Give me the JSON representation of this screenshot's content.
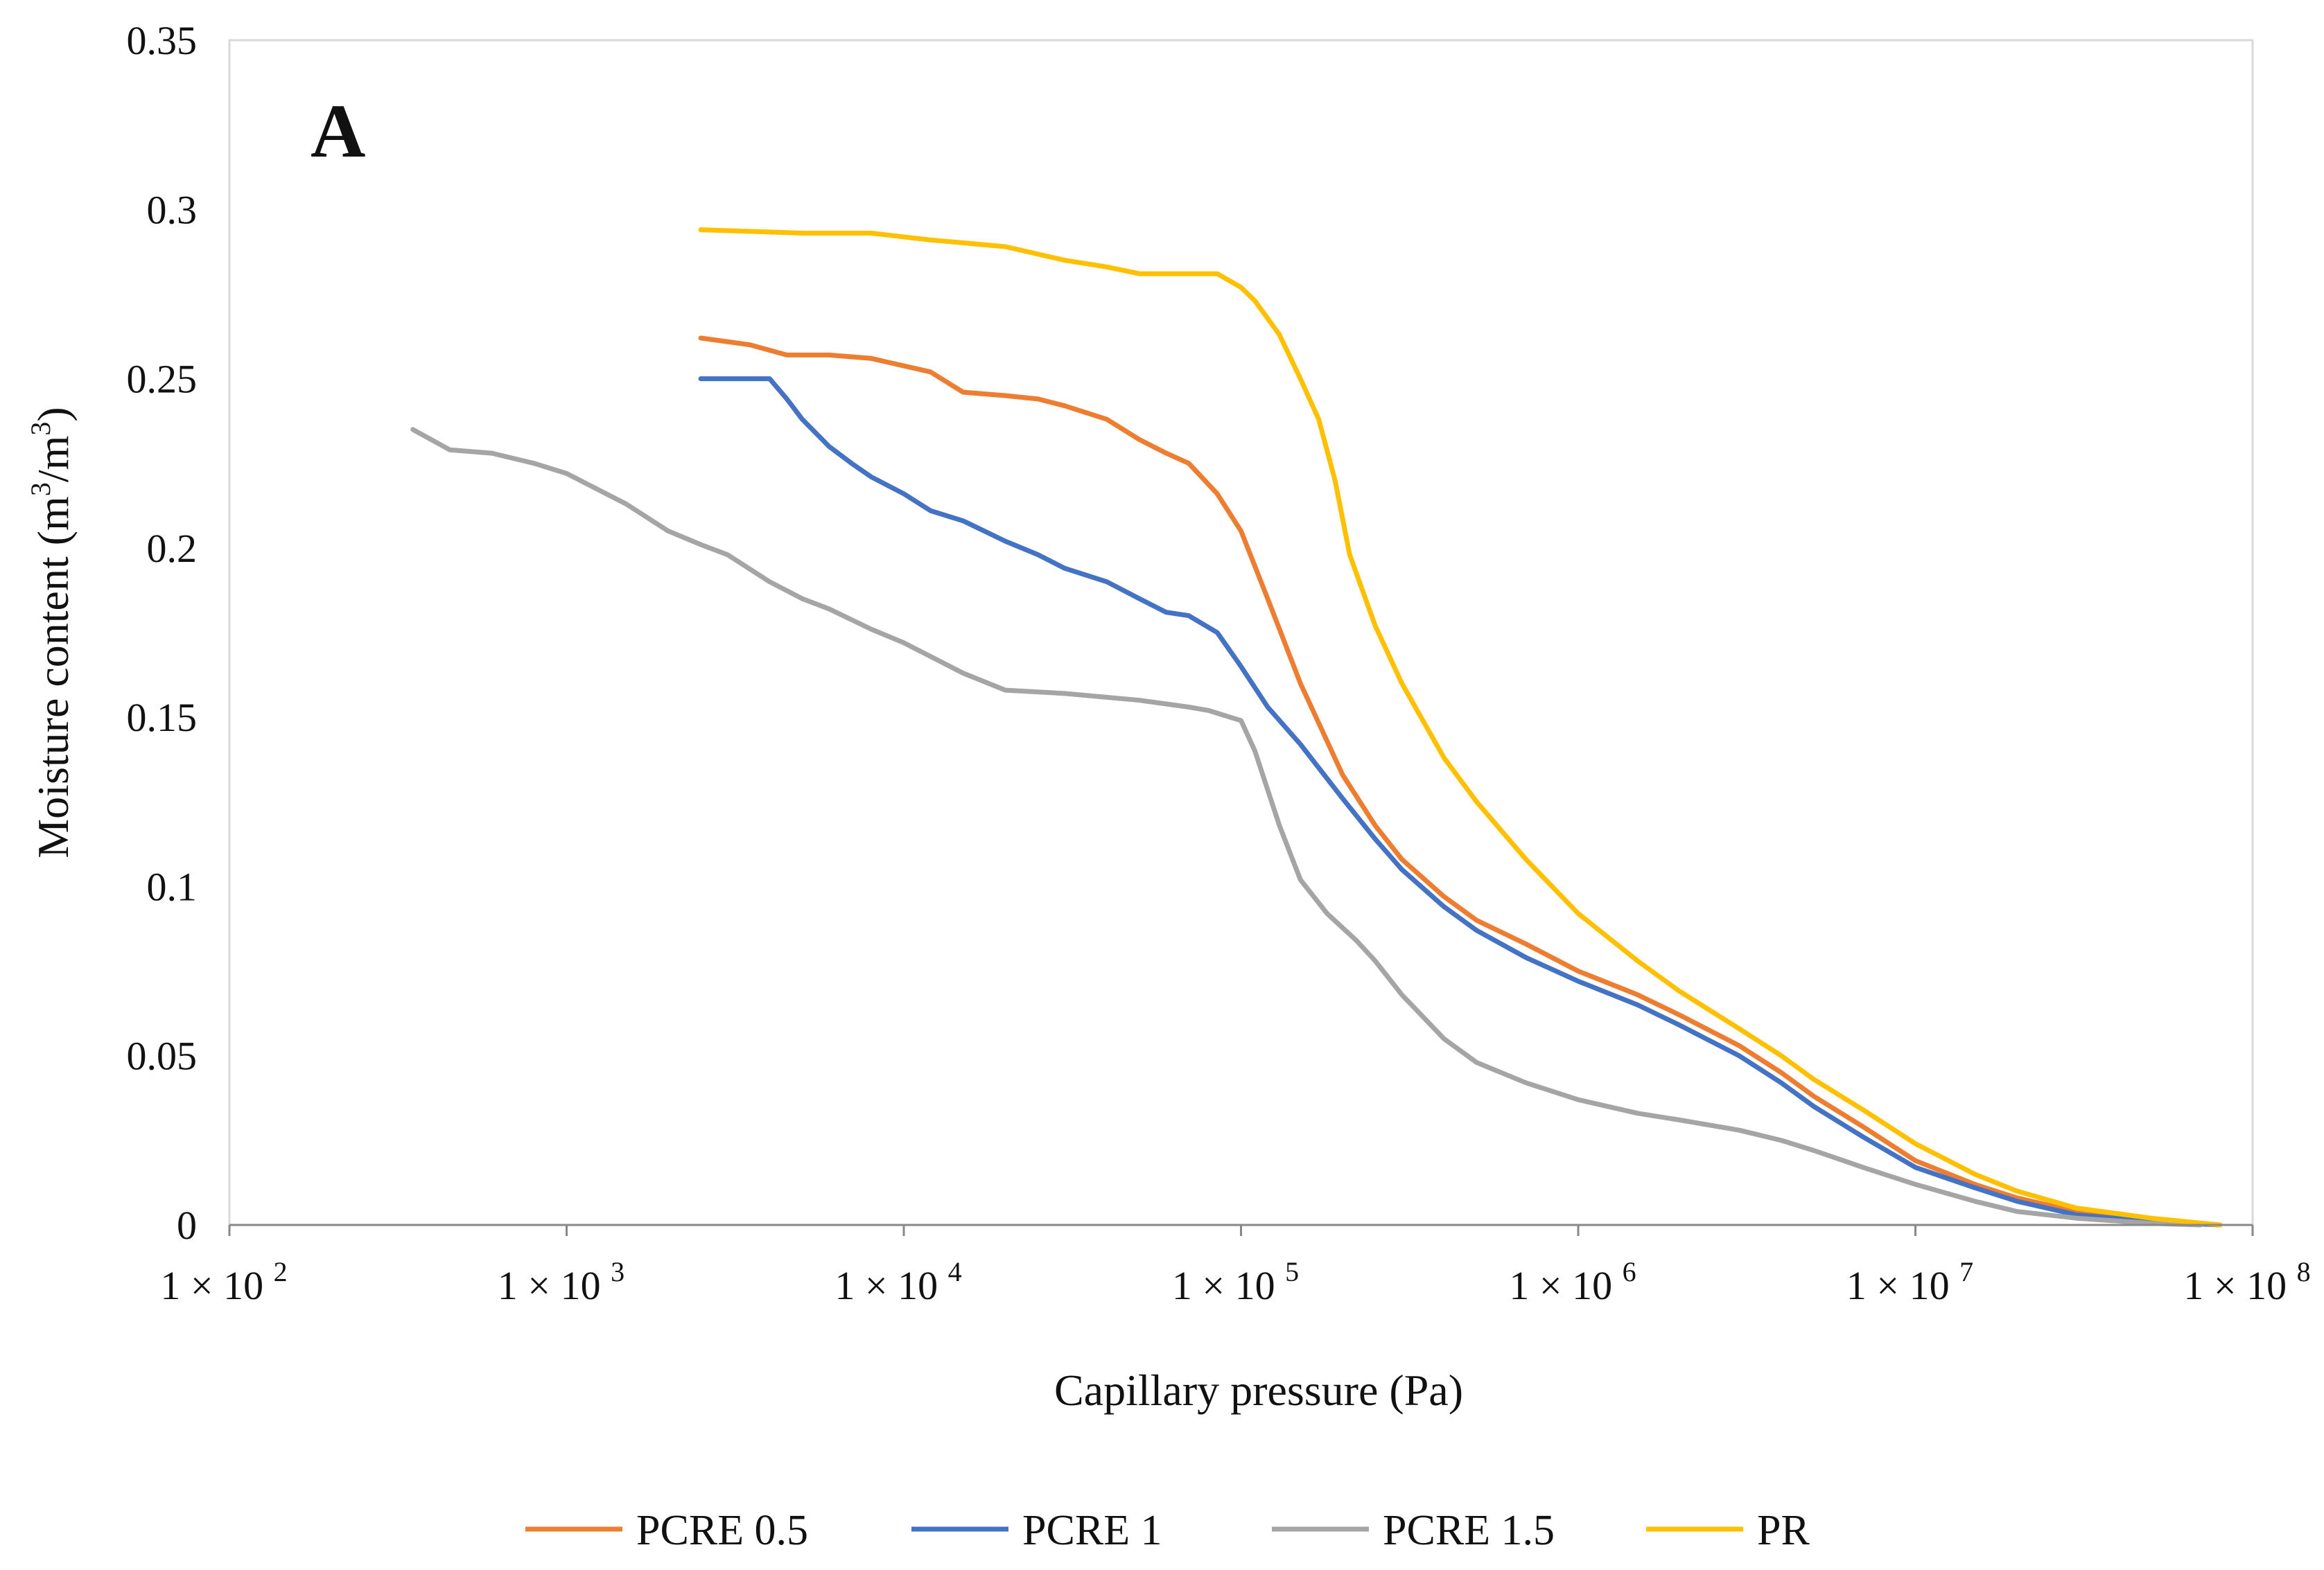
{
  "chart_data": {
    "type": "line",
    "panel_label": "A",
    "xlabel": "Capillary pressure (Pa)",
    "ylabel": "Moisture content (m3/m3)",
    "ylabel_parts": {
      "prefix": "Moisture content (m",
      "sup1": "3",
      "middle": "/m",
      "sup2": "3",
      "suffix": ")"
    },
    "x_scale": "log",
    "xlim": [
      100,
      100000000
    ],
    "ylim": [
      0,
      0.35
    ],
    "grid": false,
    "legend_position": "bottom",
    "x_ticks": [
      {
        "value": 100,
        "base": "1 × 10",
        "exp": "2"
      },
      {
        "value": 1000,
        "base": "1 × 10",
        "exp": "3"
      },
      {
        "value": 10000,
        "base": "1 × 10",
        "exp": "4"
      },
      {
        "value": 100000,
        "base": "1 × 10",
        "exp": "5"
      },
      {
        "value": 1000000,
        "base": "1 × 10",
        "exp": "6"
      },
      {
        "value": 10000000,
        "base": "1 × 10",
        "exp": "7"
      },
      {
        "value": 100000000,
        "base": "1 × 10",
        "exp": "8"
      }
    ],
    "y_ticks": [
      {
        "value": 0,
        "label": "0"
      },
      {
        "value": 0.05,
        "label": "0.05"
      },
      {
        "value": 0.1,
        "label": "0.1"
      },
      {
        "value": 0.15,
        "label": "0.15"
      },
      {
        "value": 0.2,
        "label": "0.2"
      },
      {
        "value": 0.25,
        "label": "0.25"
      },
      {
        "value": 0.3,
        "label": "0.3"
      },
      {
        "value": 0.35,
        "label": "0.35"
      }
    ],
    "series": [
      {
        "name": "PCRE 0.5",
        "color": "#ED7D31",
        "points": [
          [
            2500,
            0.262
          ],
          [
            3500,
            0.26
          ],
          [
            4500,
            0.257
          ],
          [
            6000,
            0.257
          ],
          [
            8000,
            0.256
          ],
          [
            12000,
            0.252
          ],
          [
            15000,
            0.246
          ],
          [
            20000,
            0.245
          ],
          [
            25000,
            0.244
          ],
          [
            30000,
            0.242
          ],
          [
            40000,
            0.238
          ],
          [
            50000,
            0.232
          ],
          [
            60000,
            0.228
          ],
          [
            70000,
            0.225
          ],
          [
            85000,
            0.216
          ],
          [
            100000,
            0.205
          ],
          [
            120000,
            0.185
          ],
          [
            150000,
            0.16
          ],
          [
            200000,
            0.133
          ],
          [
            250000,
            0.118
          ],
          [
            300000,
            0.108
          ],
          [
            400000,
            0.097
          ],
          [
            500000,
            0.09
          ],
          [
            700000,
            0.083
          ],
          [
            1000000,
            0.075
          ],
          [
            1500000,
            0.068
          ],
          [
            2000000,
            0.062
          ],
          [
            3000000,
            0.053
          ],
          [
            4000000,
            0.045
          ],
          [
            5000000,
            0.038
          ],
          [
            7000000,
            0.029
          ],
          [
            10000000,
            0.019
          ],
          [
            15000000,
            0.012
          ],
          [
            20000000,
            0.008
          ],
          [
            30000000,
            0.004
          ],
          [
            50000000,
            0.0015
          ],
          [
            80000000,
            0
          ]
        ]
      },
      {
        "name": "PCRE 1",
        "color": "#4472C4",
        "points": [
          [
            2500,
            0.25
          ],
          [
            4000,
            0.25
          ],
          [
            4500,
            0.244
          ],
          [
            5000,
            0.238
          ],
          [
            6000,
            0.23
          ],
          [
            7000,
            0.225
          ],
          [
            8000,
            0.221
          ],
          [
            10000,
            0.216
          ],
          [
            12000,
            0.211
          ],
          [
            15000,
            0.208
          ],
          [
            20000,
            0.202
          ],
          [
            25000,
            0.198
          ],
          [
            30000,
            0.194
          ],
          [
            40000,
            0.19
          ],
          [
            50000,
            0.185
          ],
          [
            60000,
            0.181
          ],
          [
            70000,
            0.18
          ],
          [
            85000,
            0.175
          ],
          [
            100000,
            0.165
          ],
          [
            120000,
            0.153
          ],
          [
            150000,
            0.142
          ],
          [
            200000,
            0.126
          ],
          [
            250000,
            0.114
          ],
          [
            300000,
            0.105
          ],
          [
            400000,
            0.094
          ],
          [
            500000,
            0.087
          ],
          [
            700000,
            0.079
          ],
          [
            1000000,
            0.072
          ],
          [
            1500000,
            0.065
          ],
          [
            2000000,
            0.059
          ],
          [
            3000000,
            0.05
          ],
          [
            4000000,
            0.042
          ],
          [
            5000000,
            0.035
          ],
          [
            7000000,
            0.026
          ],
          [
            10000000,
            0.017
          ],
          [
            15000000,
            0.011
          ],
          [
            20000000,
            0.007
          ],
          [
            30000000,
            0.003
          ],
          [
            50000000,
            0.001
          ],
          [
            80000000,
            0
          ]
        ]
      },
      {
        "name": "PCRE 1.5",
        "color": "#A5A5A5",
        "points": [
          [
            350,
            0.235
          ],
          [
            450,
            0.229
          ],
          [
            600,
            0.228
          ],
          [
            800,
            0.225
          ],
          [
            1000,
            0.222
          ],
          [
            1500,
            0.213
          ],
          [
            2000,
            0.205
          ],
          [
            2500,
            0.201
          ],
          [
            3000,
            0.198
          ],
          [
            4000,
            0.19
          ],
          [
            5000,
            0.185
          ],
          [
            6000,
            0.182
          ],
          [
            8000,
            0.176
          ],
          [
            10000,
            0.172
          ],
          [
            15000,
            0.163
          ],
          [
            20000,
            0.158
          ],
          [
            30000,
            0.157
          ],
          [
            50000,
            0.155
          ],
          [
            70000,
            0.153
          ],
          [
            80000,
            0.152
          ],
          [
            100000,
            0.149
          ],
          [
            110000,
            0.14
          ],
          [
            130000,
            0.118
          ],
          [
            150000,
            0.102
          ],
          [
            180000,
            0.092
          ],
          [
            220000,
            0.084
          ],
          [
            250000,
            0.078
          ],
          [
            300000,
            0.068
          ],
          [
            400000,
            0.055
          ],
          [
            500000,
            0.048
          ],
          [
            700000,
            0.042
          ],
          [
            1000000,
            0.037
          ],
          [
            1500000,
            0.033
          ],
          [
            2000000,
            0.031
          ],
          [
            3000000,
            0.028
          ],
          [
            4000000,
            0.025
          ],
          [
            5000000,
            0.022
          ],
          [
            7000000,
            0.017
          ],
          [
            10000000,
            0.012
          ],
          [
            15000000,
            0.007
          ],
          [
            20000000,
            0.004
          ],
          [
            30000000,
            0.002
          ],
          [
            50000000,
            0.0005
          ],
          [
            70000000,
            0
          ]
        ]
      },
      {
        "name": "PR",
        "color": "#FFC000",
        "points": [
          [
            2500,
            0.294
          ],
          [
            5000,
            0.293
          ],
          [
            8000,
            0.293
          ],
          [
            12000,
            0.291
          ],
          [
            20000,
            0.289
          ],
          [
            30000,
            0.285
          ],
          [
            40000,
            0.283
          ],
          [
            50000,
            0.281
          ],
          [
            70000,
            0.281
          ],
          [
            85000,
            0.281
          ],
          [
            100000,
            0.277
          ],
          [
            110000,
            0.273
          ],
          [
            130000,
            0.263
          ],
          [
            150000,
            0.25
          ],
          [
            170000,
            0.238
          ],
          [
            190000,
            0.22
          ],
          [
            210000,
            0.198
          ],
          [
            250000,
            0.177
          ],
          [
            300000,
            0.16
          ],
          [
            400000,
            0.138
          ],
          [
            500000,
            0.125
          ],
          [
            700000,
            0.108
          ],
          [
            1000000,
            0.092
          ],
          [
            1500000,
            0.078
          ],
          [
            2000000,
            0.069
          ],
          [
            3000000,
            0.058
          ],
          [
            4000000,
            0.05
          ],
          [
            5000000,
            0.043
          ],
          [
            7000000,
            0.034
          ],
          [
            10000000,
            0.024
          ],
          [
            15000000,
            0.015
          ],
          [
            20000000,
            0.01
          ],
          [
            30000000,
            0.005
          ],
          [
            50000000,
            0.002
          ],
          [
            80000000,
            0
          ]
        ]
      }
    ]
  }
}
